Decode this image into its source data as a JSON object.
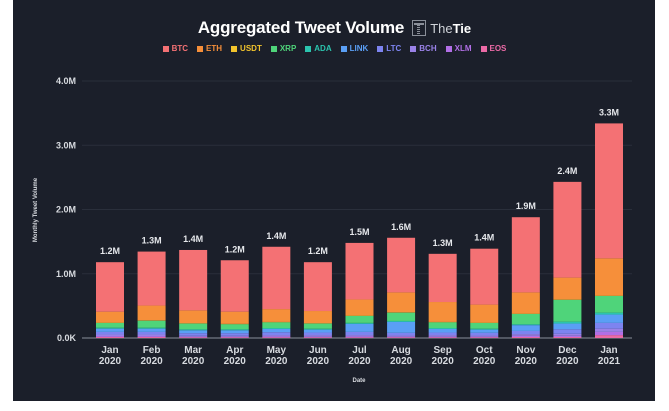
{
  "chart_data": {
    "type": "bar",
    "stacked": true,
    "title": "Aggregated Tweet Volume",
    "brand": "TheTie",
    "xlabel": "Date",
    "ylabel": "Monthly Tweet Volume",
    "ylim": [
      0,
      4000000
    ],
    "yticks": [
      "0.0K",
      "1.0M",
      "2.0M",
      "3.0M",
      "4.0M"
    ],
    "ytick_values": [
      0,
      1000000,
      2000000,
      3000000,
      4000000
    ],
    "grid": true,
    "legend_position": "top",
    "categories": [
      [
        "Jan",
        "2020"
      ],
      [
        "Feb",
        "2020"
      ],
      [
        "Mar",
        "2020"
      ],
      [
        "Apr",
        "2020"
      ],
      [
        "May",
        "2020"
      ],
      [
        "Jun",
        "2020"
      ],
      [
        "Jul",
        "2020"
      ],
      [
        "Aug",
        "2020"
      ],
      [
        "Sep",
        "2020"
      ],
      [
        "Oct",
        "2020"
      ],
      [
        "Nov",
        "2020"
      ],
      [
        "Dec",
        "2020"
      ],
      [
        "Jan",
        "2021"
      ]
    ],
    "totals_labels": [
      "1.2M",
      "1.3M",
      "1.4M",
      "1.2M",
      "1.4M",
      "1.2M",
      "1.5M",
      "1.6M",
      "1.3M",
      "1.4M",
      "1.9M",
      "2.4M",
      "3.3M"
    ],
    "totals": [
      1180000,
      1350000,
      1370000,
      1210000,
      1420000,
      1180000,
      1480000,
      1560000,
      1310000,
      1390000,
      1880000,
      2430000,
      3340000
    ],
    "series": [
      {
        "name": "BTC",
        "color": "#f47174",
        "values": [
          770000,
          840000,
          940000,
          800000,
          970000,
          760000,
          880000,
          850000,
          750000,
          870000,
          1170000,
          1490000,
          2100000
        ]
      },
      {
        "name": "ETH",
        "color": "#f68f3a",
        "values": [
          170000,
          230000,
          200000,
          190000,
          200000,
          190000,
          250000,
          310000,
          310000,
          280000,
          330000,
          340000,
          580000
        ]
      },
      {
        "name": "USDT",
        "color": "#f2c42c",
        "values": [
          5000,
          5000,
          5000,
          5000,
          5000,
          5000,
          5000,
          5000,
          5000,
          5000,
          5000,
          5000,
          5000
        ]
      },
      {
        "name": "XRP",
        "color": "#4fd47a",
        "values": [
          75000,
          110000,
          90000,
          80000,
          90000,
          80000,
          110000,
          130000,
          90000,
          90000,
          160000,
          340000,
          260000
        ]
      },
      {
        "name": "ADA",
        "color": "#2bc4ae",
        "values": [
          15000,
          15000,
          15000,
          15000,
          15000,
          15000,
          15000,
          15000,
          15000,
          15000,
          15000,
          30000,
          30000
        ]
      },
      {
        "name": "LINK",
        "color": "#5a9ff5",
        "values": [
          50000,
          50000,
          45000,
          45000,
          50000,
          45000,
          125000,
          170000,
          55000,
          50000,
          90000,
          90000,
          130000
        ]
      },
      {
        "name": "LTC",
        "color": "#7d84f0",
        "values": [
          40000,
          40000,
          40000,
          40000,
          45000,
          40000,
          50000,
          40000,
          40000,
          40000,
          50000,
          70000,
          90000
        ]
      },
      {
        "name": "BCH",
        "color": "#9a82e8",
        "values": [
          25000,
          25000,
          15000,
          15000,
          20000,
          25000,
          20000,
          20000,
          25000,
          20000,
          25000,
          30000,
          50000
        ]
      },
      {
        "name": "XLM",
        "color": "#b26fe6",
        "values": [
          15000,
          15000,
          10000,
          10000,
          15000,
          10000,
          15000,
          10000,
          10000,
          10000,
          20000,
          20000,
          50000
        ]
      },
      {
        "name": "EOS",
        "color": "#ec6aa6",
        "values": [
          15000,
          15000,
          10000,
          10000,
          10000,
          10000,
          10000,
          10000,
          10000,
          10000,
          15000,
          15000,
          45000
        ]
      }
    ]
  }
}
